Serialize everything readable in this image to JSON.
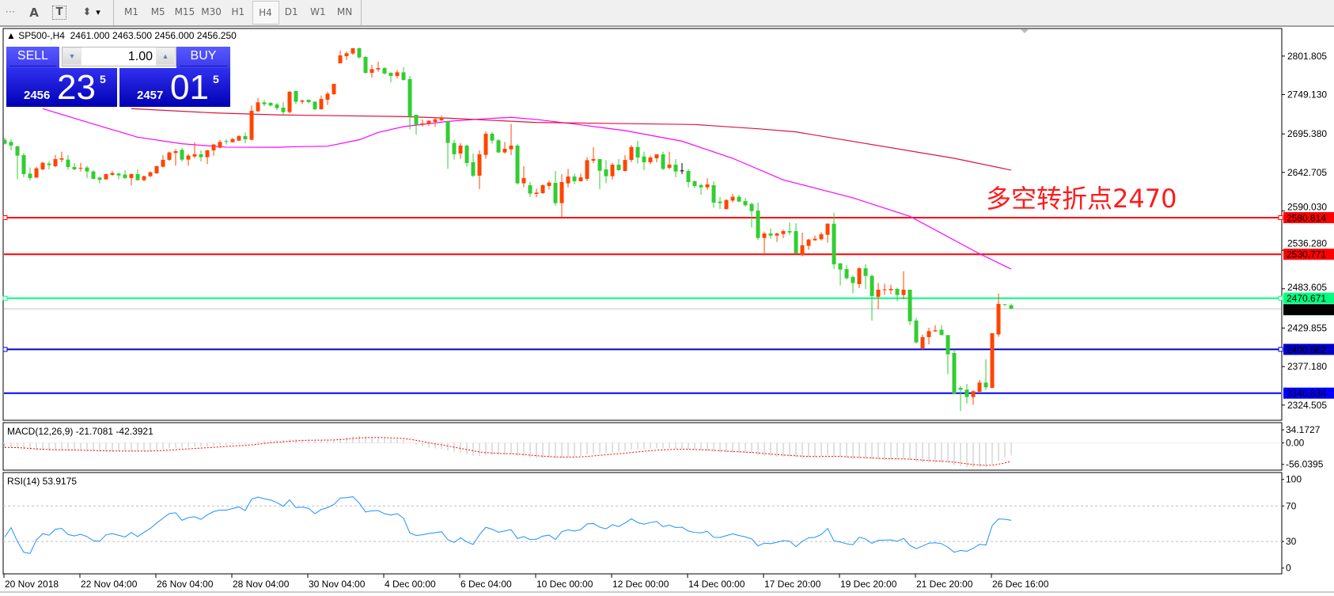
{
  "toolbar": {
    "tools": [
      {
        "name": "grid-icon",
        "glyph": "⋯"
      },
      {
        "name": "text-tool-icon",
        "glyph": "A"
      },
      {
        "name": "text-label-tool-icon",
        "glyph": "T"
      },
      {
        "name": "arrows-tool-icon",
        "glyph": "⬍"
      }
    ],
    "dropdown_glyph": "▾",
    "timeframes": [
      "M1",
      "M5",
      "M15",
      "M30",
      "H1",
      "H4",
      "D1",
      "W1",
      "MN"
    ],
    "active_timeframe": "H4"
  },
  "chart": {
    "collapse_glyph": "▲",
    "symbol": "SP500-,H4",
    "ohlc": "2461.000 2463.500 2456.000 2456.250",
    "annotation": "多空转折点2470"
  },
  "trade_panel": {
    "sell_label": "SELL",
    "buy_label": "BUY",
    "lot": "1.00",
    "down_glyph": "▼",
    "up_glyph": "▲",
    "sell_price": {
      "prefix": "2456",
      "big": "23",
      "sup": "5"
    },
    "buy_price": {
      "prefix": "2457",
      "big": "01",
      "sup": "5"
    }
  },
  "price_axis": {
    "labels": [
      "2801.805",
      "2749.130",
      "2695.380",
      "2642.705",
      "2590.030",
      "2536.280",
      "2483.605",
      "2429.855",
      "2377.180",
      "2324.505"
    ]
  },
  "hlines": [
    {
      "price": 2580.814,
      "label": "2580.814",
      "color": "#ff0000",
      "selected": true
    },
    {
      "price": 2530.771,
      "label": "2530.771",
      "color": "#ff0000",
      "selected": false
    },
    {
      "price": 2470.671,
      "label": "2470.671",
      "color": "#00ff7f",
      "selected": true
    },
    {
      "price": 2400.662,
      "label": "2400.662",
      "color": "#0000c8",
      "selected": true
    },
    {
      "price": 2340.834,
      "label": "2340.834",
      "color": "#0000ff",
      "selected": false
    }
  ],
  "bid": {
    "price": 2456.25,
    "label": "2456.250",
    "color": "#c0c0c0"
  },
  "macd": {
    "title": "MACD(12,26,9) -21.7081 -42.3921",
    "axis_labels": [
      "34.1727",
      "0.00",
      "-56.0395"
    ],
    "histogram_color": "#c0c0c0",
    "signal_color": "#ff0000"
  },
  "rsi": {
    "title": "RSI(14) 53.9175",
    "axis_labels": [
      "100",
      "70",
      "30",
      "0"
    ],
    "levels": [
      70,
      30
    ],
    "color": "#1e90ff"
  },
  "time_axis": {
    "labels": [
      "20 Nov 2018",
      "22 Nov 04:00",
      "26 Nov 04:00",
      "28 Nov 04:00",
      "30 Nov 04:00",
      "4 Dec 00:00",
      "6 Dec 04:00",
      "10 Dec 00:00",
      "12 Dec 00:00",
      "14 Dec 00:00",
      "17 Dec 20:00",
      "19 Dec 20:00",
      "21 Dec 20:00",
      "26 Dec 16:00"
    ]
  },
  "colors": {
    "bull": "#ff4500",
    "bear": "#32cd32",
    "doji": "#000000",
    "ma_fast": "#ff00ff",
    "ma_slow": "#dc143c"
  },
  "chart_data": {
    "type": "candlestick",
    "timeframe": "H4",
    "candle_format": [
      "open",
      "high",
      "low",
      "close"
    ],
    "candles": [
      [
        2687.3,
        2690.2,
        2680.8,
        2681.9
      ],
      [
        2684.4,
        2688,
        2672.9,
        2679.4
      ],
      [
        2678.3,
        2679.4,
        2633.2,
        2665.7
      ],
      [
        2666.4,
        2669.3,
        2636.1,
        2640.4
      ],
      [
        2641.1,
        2649.4,
        2631.4,
        2635
      ],
      [
        2635.7,
        2650.5,
        2635,
        2648.3
      ],
      [
        2646.9,
        2657.3,
        2645.8,
        2655.9
      ],
      [
        2654.8,
        2658.4,
        2646.9,
        2652.7
      ],
      [
        2651.2,
        2666.4,
        2649.8,
        2660.9
      ],
      [
        2660.2,
        2671.1,
        2656.6,
        2662
      ],
      [
        2660.2,
        2666.4,
        2646.5,
        2650.1
      ],
      [
        2650.1,
        2655.5,
        2645.8,
        2646.9
      ],
      [
        2648.3,
        2655.9,
        2644,
        2649
      ],
      [
        2649.4,
        2651.9,
        2635,
        2644
      ],
      [
        2644,
        2645.8,
        2633.2,
        2633.9
      ],
      [
        2635.7,
        2636.8,
        2627.8,
        2632.5
      ],
      [
        2633.2,
        2640.8,
        2632.5,
        2640.4
      ],
      [
        2639.3,
        2644.7,
        2638.2,
        2641.8
      ],
      [
        2641.1,
        2642.2,
        2633.2,
        2638.6
      ],
      [
        2639.7,
        2645.8,
        2633.9,
        2635
      ],
      [
        2635,
        2641.1,
        2624.9,
        2640.4
      ],
      [
        2640.4,
        2646.9,
        2631.4,
        2632.1
      ],
      [
        2632.1,
        2638.2,
        2630.7,
        2637.5
      ],
      [
        2637.5,
        2644,
        2636.1,
        2642.9
      ],
      [
        2641.5,
        2652,
        2640.8,
        2651.2
      ],
      [
        2650.5,
        2666.4,
        2649.4,
        2659.9
      ],
      [
        2659.9,
        2671.1,
        2658.4,
        2670
      ],
      [
        2669.3,
        2674.7,
        2651.9,
        2671.8
      ],
      [
        2673.6,
        2676.5,
        2657.7,
        2660.2
      ],
      [
        2660.2,
        2667.5,
        2651.9,
        2665.7
      ],
      [
        2664.6,
        2683.7,
        2662,
        2667.5
      ],
      [
        2667.5,
        2672.9,
        2657.7,
        2663.5
      ],
      [
        2663.5,
        2673.6,
        2654.1,
        2672.9
      ],
      [
        2672.9,
        2681.9,
        2665.7,
        2680.8
      ],
      [
        2676.5,
        2687.3,
        2675.6,
        2684.4
      ],
      [
        2685.5,
        2688,
        2680.8,
        2684.4
      ],
      [
        2684,
        2690,
        2683.7,
        2688.3
      ],
      [
        2686.2,
        2693.8,
        2685.5,
        2692.3
      ],
      [
        2692.3,
        2697.4,
        2682.6,
        2688
      ],
      [
        2687.3,
        2734.2,
        2686.6,
        2727
      ],
      [
        2726.3,
        2744.3,
        2725.2,
        2738.5
      ],
      [
        2738.5,
        2741.8,
        2733,
        2736
      ],
      [
        2737.8,
        2739,
        2733,
        2734.2
      ],
      [
        2735.6,
        2737.8,
        2727.7,
        2730.6
      ],
      [
        2731.3,
        2738.9,
        2721.6,
        2725.2
      ],
      [
        2725.2,
        2754,
        2723.4,
        2753
      ],
      [
        2754,
        2754,
        2736,
        2739.3
      ],
      [
        2739.3,
        2742.1,
        2736,
        2741
      ],
      [
        2742.1,
        2742.1,
        2737.1,
        2738.9
      ],
      [
        2739.6,
        2739.6,
        2728,
        2729.1
      ],
      [
        2729.1,
        2747.9,
        2728.4,
        2743.2
      ],
      [
        2742.1,
        2752.9,
        2734.9,
        2750.4
      ],
      [
        2749.7,
        2763.8,
        2748.6,
        2763.8
      ],
      [
        2791.9,
        2809.2,
        2791.9,
        2802.7
      ],
      [
        2801.7,
        2808.2,
        2796.3,
        2805.6
      ],
      [
        2805.3,
        2812.5,
        2803.5,
        2812.5
      ],
      [
        2812.5,
        2813.6,
        2798.4,
        2799.9
      ],
      [
        2800.6,
        2801.7,
        2777.5,
        2778.9
      ],
      [
        2778.9,
        2789.8,
        2772.4,
        2784
      ],
      [
        2783.6,
        2794.1,
        2780.4,
        2785.4
      ],
      [
        2785.4,
        2786.5,
        2776.8,
        2777.9
      ],
      [
        2778.9,
        2779.6,
        2765.9,
        2774.6
      ],
      [
        2774.6,
        2782.9,
        2771.4,
        2779.6
      ],
      [
        2779.6,
        2786.5,
        2768.1,
        2769.2
      ],
      [
        2770.3,
        2774.6,
        2701.7,
        2719
      ],
      [
        2721.6,
        2721.6,
        2694.5,
        2707.9
      ],
      [
        2707.9,
        2715.1,
        2705.3,
        2709.7
      ],
      [
        2709.7,
        2714.4,
        2706.4,
        2713.3
      ],
      [
        2711.8,
        2717.9,
        2705.3,
        2715.4
      ],
      [
        2714,
        2720.5,
        2713.3,
        2717.6
      ],
      [
        2712.5,
        2713.3,
        2647.6,
        2683
      ],
      [
        2683,
        2687.3,
        2660.2,
        2667.5
      ],
      [
        2668.5,
        2683,
        2661.3,
        2679.4
      ],
      [
        2679.4,
        2680.8,
        2650.5,
        2655.5
      ],
      [
        2656.6,
        2668.5,
        2636.1,
        2638.2
      ],
      [
        2638.2,
        2672.9,
        2619.8,
        2667.5
      ],
      [
        2666.7,
        2698.8,
        2661.3,
        2695.6
      ],
      [
        2695.6,
        2698.1,
        2681.9,
        2686.2
      ],
      [
        2686.6,
        2688,
        2669.3,
        2670
      ],
      [
        2670,
        2684.4,
        2668.5,
        2675
      ],
      [
        2674.3,
        2708.9,
        2666.4,
        2679.4
      ],
      [
        2679.4,
        2681.5,
        2626,
        2627.8
      ],
      [
        2627.8,
        2651.2,
        2622.3,
        2635
      ],
      [
        2625.2,
        2629.6,
        2609,
        2613.7
      ],
      [
        2613.3,
        2620.5,
        2608.6,
        2615.1
      ],
      [
        2614.4,
        2626.3,
        2613.3,
        2625.2
      ],
      [
        2624.1,
        2631.3,
        2619.4,
        2628.8
      ],
      [
        2628.4,
        2644.7,
        2597.1,
        2600.7
      ],
      [
        2600.7,
        2640.3,
        2580.8,
        2629.5
      ],
      [
        2627.7,
        2647.5,
        2622.3,
        2637.1
      ],
      [
        2637.1,
        2641.1,
        2626.6,
        2630.6
      ],
      [
        2630.6,
        2641.1,
        2630.6,
        2636
      ],
      [
        2633.8,
        2663.8,
        2631,
        2659.4
      ],
      [
        2658.7,
        2677.1,
        2655.5,
        2660.9
      ],
      [
        2660.9,
        2660.9,
        2619.8,
        2645
      ],
      [
        2646.8,
        2659.4,
        2627.7,
        2637.5
      ],
      [
        2637.5,
        2655.5,
        2633.1,
        2653.3
      ],
      [
        2653.3,
        2660.9,
        2644.7,
        2645.8
      ],
      [
        2644.7,
        2666.3,
        2643.9,
        2659.8
      ],
      [
        2659.8,
        2680,
        2656.6,
        2677.5
      ],
      [
        2677.5,
        2686.2,
        2654.8,
        2663.1
      ],
      [
        2664.5,
        2671,
        2645.8,
        2656.6
      ],
      [
        2656.6,
        2665.6,
        2653.7,
        2663.1
      ],
      [
        2662,
        2667.4,
        2656.6,
        2667.4
      ],
      [
        2667.4,
        2671,
        2645.8,
        2647.5
      ],
      [
        2649,
        2671,
        2646.8,
        2653.3
      ],
      [
        2653.3,
        2660.9,
        2636,
        2643.9
      ],
      [
        2645.4,
        2655.5,
        2640.3,
        2645
      ],
      [
        2644.7,
        2647.5,
        2622.3,
        2629.5
      ],
      [
        2630.6,
        2631.7,
        2621.2,
        2624.1
      ],
      [
        2625.2,
        2627.3,
        2612.2,
        2622.3
      ],
      [
        2622.3,
        2634.6,
        2618.7,
        2626.3
      ],
      [
        2625.2,
        2630.6,
        2594.2,
        2601.4
      ],
      [
        2602.8,
        2608.9,
        2592.7,
        2600.7
      ],
      [
        2592.7,
        2606.1,
        2591.6,
        2604.9
      ],
      [
        2604.2,
        2613.3,
        2601.4,
        2609.3
      ],
      [
        2609.3,
        2612.2,
        2602.1,
        2602.8
      ],
      [
        2603.5,
        2607.9,
        2595.9,
        2597.8
      ],
      [
        2599.6,
        2601.4,
        2567.4,
        2589.8
      ],
      [
        2590.5,
        2601.4,
        2550.1,
        2553
      ],
      [
        2553,
        2561.7,
        2530.3,
        2559.2
      ],
      [
        2559.2,
        2566,
        2551.9,
        2556.3
      ],
      [
        2556.3,
        2560.2,
        2547.6,
        2559.2
      ],
      [
        2558.4,
        2564.6,
        2553,
        2562.4
      ],
      [
        2562.4,
        2574.3,
        2557.3,
        2560.6
      ],
      [
        2562.4,
        2573.3,
        2531.4,
        2532.1
      ],
      [
        2529.6,
        2560.3,
        2527.8,
        2543
      ],
      [
        2542.2,
        2552,
        2536.8,
        2550.9
      ],
      [
        2549.8,
        2556.3,
        2549.5,
        2552
      ],
      [
        2551.3,
        2561,
        2549.5,
        2558.1
      ],
      [
        2557.4,
        2573.3,
        2546.6,
        2572.5
      ],
      [
        2572.5,
        2587.3,
        2510.5,
        2517
      ],
      [
        2518.4,
        2518.4,
        2488.1,
        2509.8
      ],
      [
        2510.5,
        2515.9,
        2496.1,
        2497.9
      ],
      [
        2499.7,
        2501.5,
        2477.3,
        2491.4
      ],
      [
        2489.9,
        2513,
        2484.5,
        2511.6
      ],
      [
        2511.6,
        2517,
        2483.4,
        2501.1
      ],
      [
        2501.1,
        2503.3,
        2440.1,
        2473.7
      ],
      [
        2472.6,
        2491.4,
        2455.6,
        2482.3
      ],
      [
        2481.9,
        2490.6,
        2475.1,
        2482.7
      ],
      [
        2481.6,
        2488.8,
        2476.2,
        2483.4
      ],
      [
        2483.4,
        2485.2,
        2466.5,
        2475.1
      ],
      [
        2475.1,
        2507.6,
        2469,
        2482.3
      ],
      [
        2482.3,
        2482.3,
        2434,
        2439.1
      ],
      [
        2440.1,
        2443.7,
        2408.7,
        2410.2
      ],
      [
        2402.2,
        2421,
        2400.4,
        2417.4
      ],
      [
        2417.4,
        2430.4,
        2407.6,
        2425.7
      ],
      [
        2425.3,
        2433.6,
        2424.6,
        2426.8
      ],
      [
        2427.5,
        2433.6,
        2419.6,
        2420.3
      ],
      [
        2420.3,
        2420.3,
        2366.9,
        2393.9
      ],
      [
        2395.7,
        2400.4,
        2340.2,
        2340.2
      ],
      [
        2348.1,
        2350.6,
        2316.4,
        2345.6
      ],
      [
        2345.6,
        2353.5,
        2326.5,
        2335.5
      ],
      [
        2335.5,
        2344.5,
        2324.7,
        2343.4
      ],
      [
        2342.7,
        2359,
        2340.9,
        2355.3
      ],
      [
        2355.3,
        2387.1,
        2345.2,
        2348.8
      ],
      [
        2348.1,
        2422.8,
        2347.4,
        2422.8
      ],
      [
        2421,
        2476.9,
        2417.8,
        2462.9
      ],
      [
        2462.5,
        2462.5,
        2460,
        2461.4
      ],
      [
        2461,
        2463.5,
        2456,
        2456.25
      ]
    ],
    "moving_averages": [
      {
        "color": "#ff00ff",
        "points": [
          [
            6,
            2729.9
          ],
          [
            14,
            2708.9
          ],
          [
            21,
            2690.9
          ],
          [
            28,
            2681.9
          ],
          [
            35,
            2677.2
          ],
          [
            43,
            2677
          ],
          [
            46,
            2677.9
          ],
          [
            51,
            2678.6
          ],
          [
            56,
            2687.3
          ],
          [
            59,
            2697.4
          ],
          [
            63,
            2705.3
          ],
          [
            70,
            2712.5
          ],
          [
            76,
            2716.2
          ],
          [
            80,
            2718
          ],
          [
            84,
            2715.1
          ],
          [
            90,
            2708.9
          ],
          [
            98,
            2699.9
          ],
          [
            107,
            2685.4
          ],
          [
            115,
            2662
          ],
          [
            123,
            2632.4
          ],
          [
            134,
            2607.9
          ],
          [
            143,
            2582.6
          ],
          [
            154,
            2531.4
          ],
          [
            159,
            2510.5
          ]
        ]
      },
      {
        "color": "#dc143c",
        "points": [
          [
            20,
            2729.9
          ],
          [
            33,
            2724.1
          ],
          [
            43,
            2721.4
          ],
          [
            63,
            2719.1
          ],
          [
            70,
            2716.9
          ],
          [
            84,
            2711
          ],
          [
            109,
            2708.2
          ],
          [
            119,
            2702.4
          ],
          [
            125,
            2698.1
          ],
          [
            150,
            2662
          ],
          [
            159,
            2645.8
          ]
        ]
      }
    ],
    "price_range": [
      2317,
      2830
    ],
    "macd_range": [
      -56.0395,
      34.1727
    ],
    "rsi_range": [
      0,
      100
    ]
  }
}
